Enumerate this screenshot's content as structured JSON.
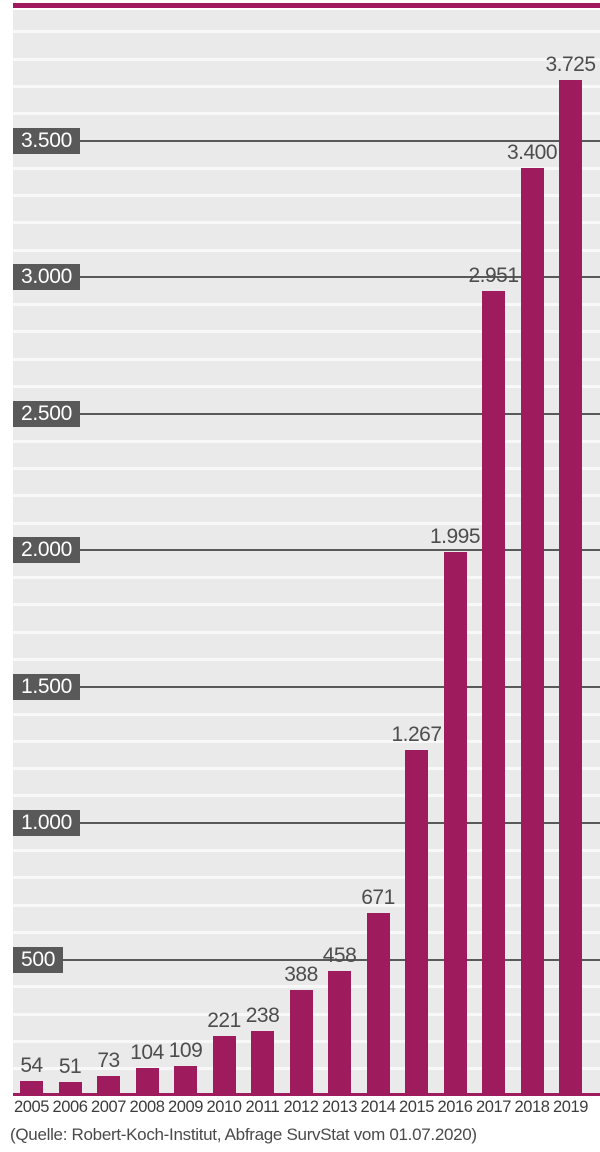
{
  "figure": {
    "kind": "static infographic bar chart",
    "title": ""
  },
  "chart_data": {
    "type": "bar",
    "title": "",
    "xlabel": "",
    "ylabel": "",
    "categories": [
      "2005",
      "2006",
      "2007",
      "2008",
      "2009",
      "2010",
      "2011",
      "2012",
      "2013",
      "2014",
      "2015",
      "2016",
      "2017",
      "2018",
      "2019"
    ],
    "values": [
      54,
      51,
      73,
      104,
      109,
      221,
      238,
      388,
      458,
      671,
      1267,
      1995,
      2951,
      3400,
      3725
    ],
    "value_labels": [
      "54",
      "51",
      "73",
      "104",
      "109",
      "221",
      "238",
      "388",
      "458",
      "671",
      "1.267",
      "1.995",
      "2.951",
      "3.400",
      "3.725"
    ],
    "ylim": [
      0,
      3980
    ],
    "y_major_ticks": [
      {
        "value": 500,
        "label": "500"
      },
      {
        "value": 1000,
        "label": "1.000"
      },
      {
        "value": 1500,
        "label": "1.500"
      },
      {
        "value": 2000,
        "label": "2.000"
      },
      {
        "value": 2500,
        "label": "2.500"
      },
      {
        "value": 3000,
        "label": "3.000"
      },
      {
        "value": 3500,
        "label": "3.500"
      }
    ],
    "y_minor_step": 100,
    "grid": {
      "minor": "on",
      "major": "on"
    },
    "legend": "none",
    "number_format": "de-DE (dot as thousands separator)",
    "source": "(Quelle: Robert-Koch-Institut, Abfrage SurvStat vom 01.07.2020)"
  },
  "colors": {
    "bar": "#9e1b5e",
    "accent_rule": "#a1195e",
    "baseline": "#9e1b5e",
    "plot_background": "#eaeaea",
    "minor_gridline": "#f8f8f8",
    "major_gridline": "#595959",
    "tick_box_background": "#595959",
    "tick_box_text": "#ffffff",
    "value_label_text": "#4d4d4d",
    "x_axis_text": "#3c3c3c",
    "source_text": "#4a4a4a",
    "page_background": "#ffffff"
  }
}
